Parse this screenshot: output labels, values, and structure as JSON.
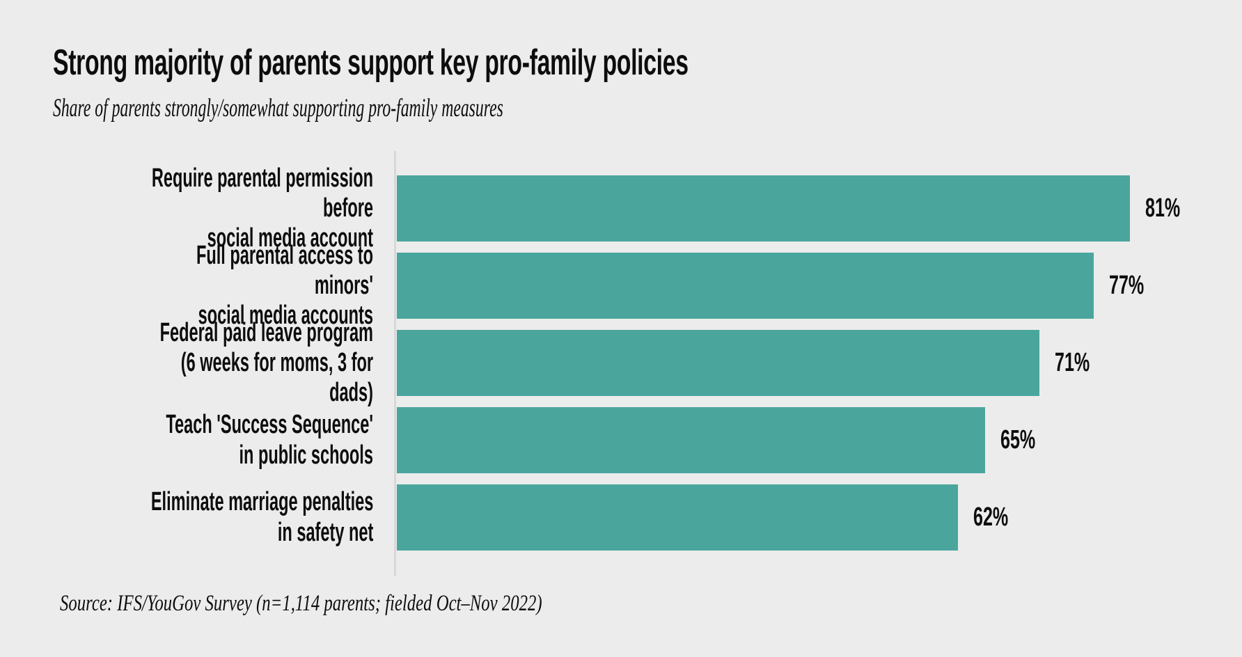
{
  "colors": {
    "background": "#ececec",
    "bar": "#4aa69d",
    "axis_line": "#d8d8d8",
    "text": "#0d0d0d"
  },
  "chart_data": {
    "type": "bar",
    "orientation": "horizontal",
    "title": "Strong majority of parents support key pro-family policies",
    "subtitle": "Share of parents strongly/somewhat supporting pro-family measures",
    "source": "Source: IFS/YouGov Survey (n=1,114 parents; fielded Oct–Nov 2022)",
    "categories": [
      "Require parental permission before\nsocial media account",
      "Full parental access to minors'\nsocial media accounts",
      "Federal paid leave program\n(6 weeks for moms, 3 for dads)",
      "Teach 'Success Sequence'\nin public schools",
      "Eliminate marriage penalties\nin safety net"
    ],
    "values": [
      81,
      77,
      71,
      65,
      62
    ],
    "value_labels": [
      "81%",
      "77%",
      "71%",
      "65%",
      "62%"
    ],
    "xlabel": "",
    "ylabel": "",
    "xlim": [
      0,
      90
    ],
    "grid": false,
    "legend": false,
    "bar_value_label_position": "outside-end"
  }
}
